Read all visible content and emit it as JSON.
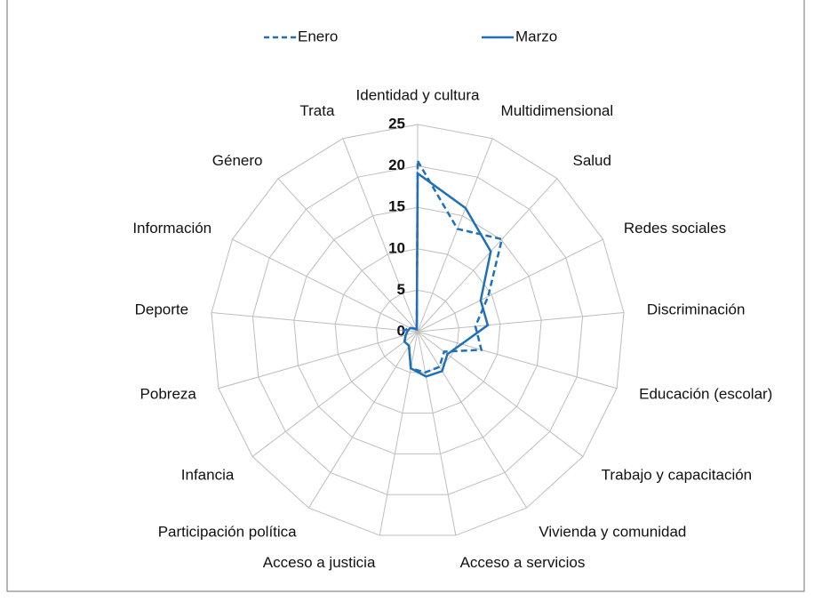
{
  "chart_data": {
    "type": "radar",
    "categories": [
      "Identidad y cultura",
      "Multidimensional",
      "Salud",
      "Redes sociales",
      "Discriminación",
      "Educación (escolar)",
      "Trabajo y capacitación",
      "Vivienda y comunidad",
      "Acceso a servicios",
      "Acceso a justicia",
      "Participación política",
      "Infancia",
      "Pobreza",
      "Deporte",
      "Información",
      "Género",
      "Trata"
    ],
    "series": [
      {
        "name": "Enero",
        "color": "#1f6fba",
        "dash": true,
        "values": [
          20.6,
          13.3,
          15.1,
          9.5,
          7,
          8,
          4,
          5,
          5,
          4.5,
          2,
          2,
          1.5,
          1.7,
          1,
          0.5,
          0.3
        ]
      },
      {
        "name": "Marzo",
        "color": "#1f6fba",
        "dash": false,
        "values": [
          19.1,
          16,
          13.1,
          8.5,
          8.5,
          5.5,
          4.5,
          5.6,
          5.5,
          4.5,
          2,
          2,
          1.5,
          1.2,
          1,
          0.5,
          0.3
        ]
      }
    ],
    "ylim": [
      0,
      25
    ],
    "yticks": [
      0,
      5,
      10,
      15,
      20,
      25
    ],
    "grid": true,
    "legend": "top"
  }
}
